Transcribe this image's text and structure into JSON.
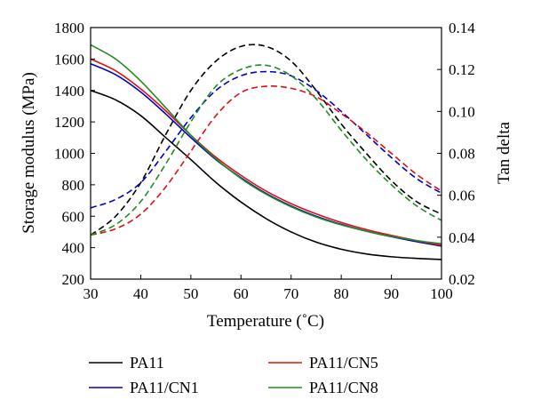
{
  "chart_data": {
    "type": "line",
    "title": "",
    "xlabel": "Temperature (˚C)",
    "ylabel_left": "Storage modulus (MPa)",
    "ylabel_right": "Tan delta",
    "xlim": [
      30,
      100
    ],
    "ylim_left": [
      200,
      1800
    ],
    "ylim_right": [
      0.02,
      0.14
    ],
    "x_ticks": [
      "30",
      "40",
      "50",
      "60",
      "70",
      "80",
      "90",
      "100"
    ],
    "y_ticks_left": [
      "200",
      "400",
      "600",
      "800",
      "1000",
      "1200",
      "1400",
      "1600",
      "1800"
    ],
    "y_ticks_right": [
      "0.02",
      "0.04",
      "0.06",
      "0.08",
      "0.10",
      "0.12",
      "0.14"
    ],
    "grid": false,
    "legend_position": "bottom",
    "x": [
      30,
      35,
      40,
      45,
      50,
      55,
      60,
      65,
      70,
      75,
      80,
      85,
      90,
      95,
      100
    ],
    "series": [
      {
        "name": "PA11",
        "color": "#000000",
        "storage_modulus": [
          1400,
          1340,
          1240,
          1100,
          960,
          815,
          690,
          585,
          500,
          435,
          390,
          360,
          342,
          332,
          325
        ],
        "tan_delta": [
          0.041,
          0.05,
          0.066,
          0.089,
          0.11,
          0.124,
          0.131,
          0.131,
          0.124,
          0.11,
          0.094,
          0.08,
          0.067,
          0.057,
          0.051
        ]
      },
      {
        "name": "PA11/CN1",
        "color": "#0000cc",
        "storage_modulus": [
          1570,
          1500,
          1390,
          1250,
          1100,
          960,
          845,
          745,
          665,
          600,
          548,
          505,
          470,
          438,
          410
        ],
        "tan_delta": [
          0.054,
          0.058,
          0.066,
          0.081,
          0.097,
          0.11,
          0.117,
          0.119,
          0.117,
          0.11,
          0.1,
          0.089,
          0.078,
          0.068,
          0.061
        ]
      },
      {
        "name": "PA11/CN5",
        "color": "#dd1111",
        "storage_modulus": [
          1600,
          1525,
          1410,
          1270,
          1115,
          975,
          860,
          760,
          680,
          615,
          560,
          515,
          478,
          445,
          415
        ],
        "tan_delta": [
          0.041,
          0.044,
          0.051,
          0.064,
          0.081,
          0.098,
          0.109,
          0.112,
          0.111,
          0.107,
          0.099,
          0.09,
          0.08,
          0.07,
          0.062
        ]
      },
      {
        "name": "PA11/CN8",
        "color": "#228b22",
        "storage_modulus": [
          1690,
          1600,
          1460,
          1290,
          1115,
          965,
          840,
          740,
          660,
          595,
          545,
          505,
          472,
          445,
          425
        ],
        "tan_delta": [
          0.041,
          0.046,
          0.057,
          0.075,
          0.095,
          0.112,
          0.12,
          0.122,
          0.117,
          0.106,
          0.091,
          0.077,
          0.065,
          0.055,
          0.048
        ]
      }
    ]
  }
}
